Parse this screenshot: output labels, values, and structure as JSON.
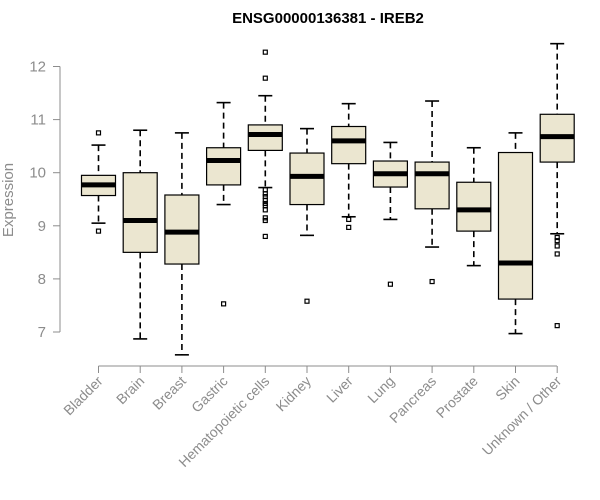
{
  "chart_data": {
    "type": "boxplot",
    "title": "ENSG00000136381 - IREB2",
    "xlabel": "",
    "ylabel": "Expression",
    "ylim": [
      6.5,
      12.6
    ],
    "yticks": [
      7,
      8,
      9,
      10,
      11,
      12
    ],
    "grid": false,
    "colors": {
      "box_fill": "#ebe6d0",
      "box_stroke": "#000000",
      "axis": "#8c8c8c"
    },
    "categories": [
      "Bladder",
      "Brain",
      "Breast",
      "Gastric",
      "Hematopoietic cells",
      "Kidney",
      "Liver",
      "Lung",
      "Pancreas",
      "Prostate",
      "Skin",
      "Unknown / Other"
    ],
    "boxes": [
      {
        "name": "Bladder",
        "whisker_low": 9.05,
        "q1": 9.57,
        "median": 9.77,
        "q3": 9.95,
        "whisker_high": 10.52,
        "outliers": [
          10.75,
          8.9
        ]
      },
      {
        "name": "Brain",
        "whisker_low": 6.87,
        "q1": 8.5,
        "median": 9.1,
        "q3": 10.0,
        "whisker_high": 10.8,
        "outliers": []
      },
      {
        "name": "Breast",
        "whisker_low": 6.57,
        "q1": 8.28,
        "median": 8.88,
        "q3": 9.58,
        "whisker_high": 10.75,
        "outliers": []
      },
      {
        "name": "Gastric",
        "whisker_low": 9.4,
        "q1": 9.77,
        "median": 10.23,
        "q3": 10.47,
        "whisker_high": 11.32,
        "outliers": [
          7.53
        ]
      },
      {
        "name": "Hematopoietic cells",
        "whisker_low": 9.72,
        "q1": 10.42,
        "median": 10.72,
        "q3": 10.9,
        "whisker_high": 11.45,
        "outliers": [
          12.27,
          11.78,
          9.68,
          9.6,
          9.55,
          9.48,
          9.42,
          9.38,
          9.3,
          9.15,
          9.1,
          8.8
        ]
      },
      {
        "name": "Kidney",
        "whisker_low": 8.82,
        "q1": 9.4,
        "median": 9.93,
        "q3": 10.37,
        "whisker_high": 10.83,
        "outliers": [
          7.58
        ]
      },
      {
        "name": "Liver",
        "whisker_low": 9.17,
        "q1": 10.17,
        "median": 10.6,
        "q3": 10.87,
        "whisker_high": 11.3,
        "outliers": [
          9.12,
          8.97
        ]
      },
      {
        "name": "Lung",
        "whisker_low": 9.12,
        "q1": 9.73,
        "median": 9.98,
        "q3": 10.22,
        "whisker_high": 10.57,
        "outliers": [
          7.9
        ]
      },
      {
        "name": "Pancreas",
        "whisker_low": 8.6,
        "q1": 9.32,
        "median": 9.98,
        "q3": 10.2,
        "whisker_high": 11.35,
        "outliers": [
          7.95
        ]
      },
      {
        "name": "Prostate",
        "whisker_low": 8.25,
        "q1": 8.9,
        "median": 9.3,
        "q3": 9.82,
        "whisker_high": 10.47,
        "outliers": []
      },
      {
        "name": "Skin",
        "whisker_low": 6.97,
        "q1": 7.62,
        "median": 8.3,
        "q3": 10.38,
        "whisker_high": 10.75,
        "outliers": []
      },
      {
        "name": "Unknown / Other",
        "whisker_low": 8.85,
        "q1": 10.2,
        "median": 10.68,
        "q3": 11.1,
        "whisker_high": 12.43,
        "outliers": [
          8.78,
          8.72,
          8.62,
          8.47,
          7.12
        ]
      }
    ]
  }
}
